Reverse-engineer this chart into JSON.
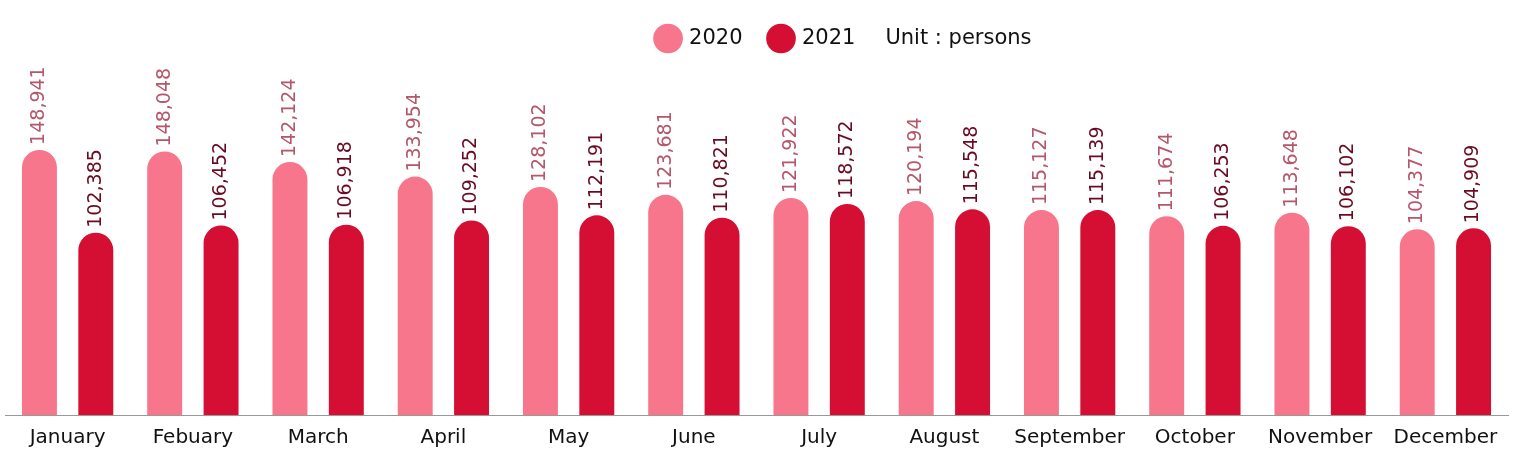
{
  "chart_data": {
    "type": "bar",
    "categories": [
      "January",
      "Febuary",
      "March",
      "April",
      "May",
      "June",
      "July",
      "August",
      "September",
      "October",
      "November",
      "December"
    ],
    "series": [
      {
        "name": "2020",
        "color": "#f7768b",
        "values": [
          148941,
          148048,
          142124,
          133954,
          128102,
          123681,
          121922,
          120194,
          115127,
          111674,
          113648,
          104377
        ],
        "value_labels": [
          "148,941",
          "148,048",
          "142,124",
          "133,954",
          "128,102",
          "123,681",
          "121,922",
          "120,194",
          "115,127",
          "111,674",
          "113,648",
          "104,377"
        ]
      },
      {
        "name": "2021",
        "color": "#d50f33",
        "values": [
          102385,
          106452,
          106918,
          109252,
          112191,
          110821,
          118572,
          115548,
          115139,
          106253,
          106102,
          104909
        ],
        "value_labels": [
          "102,385",
          "106,452",
          "106,918",
          "109,252",
          "112,191",
          "110,821",
          "118,572",
          "115,548",
          "115,139",
          "106,253",
          "106,102",
          "104,909"
        ]
      }
    ],
    "legend": "top",
    "grid": false,
    "tick_labels": "x",
    "annotations": [
      "Unit : persons"
    ]
  }
}
